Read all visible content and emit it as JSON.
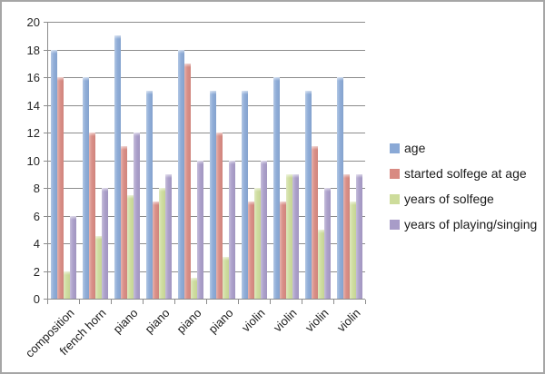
{
  "chart_data": {
    "type": "bar",
    "title": "",
    "xlabel": "",
    "ylabel": "",
    "categories": [
      "composition",
      "french horn",
      "piano",
      "piano",
      "piano",
      "piano",
      "violin",
      "violin",
      "violin",
      "violin"
    ],
    "series": [
      {
        "name": "age",
        "color": "#8aa9d6",
        "values": [
          18,
          16,
          19,
          15,
          18,
          15,
          15,
          16,
          15,
          16
        ]
      },
      {
        "name": "started solfege at age",
        "color": "#d88a82",
        "values": [
          16,
          12,
          11,
          7,
          17,
          12,
          7,
          7,
          11,
          9
        ]
      },
      {
        "name": "years of solfege",
        "color": "#cddc9b",
        "values": [
          2,
          4.5,
          7.5,
          8,
          1.5,
          3,
          8,
          9,
          5,
          7
        ]
      },
      {
        "name": "years of playing/singing",
        "color": "#a89cc8",
        "values": [
          6,
          8,
          12,
          9,
          10,
          10,
          10,
          9,
          8,
          9
        ]
      }
    ],
    "ylim": [
      0,
      20
    ],
    "ytick_step": 2,
    "ytick_labels": [
      "0",
      "2",
      "4",
      "6",
      "8",
      "10",
      "12",
      "14",
      "16",
      "18",
      "20"
    ],
    "grid": true,
    "legend_position": "right"
  },
  "colors": {
    "gridline": "#8c8c8c",
    "axis": "#8c8c8c",
    "label_text": "#262626",
    "frame_border": "#a6a6a6",
    "background": "#ffffff"
  }
}
